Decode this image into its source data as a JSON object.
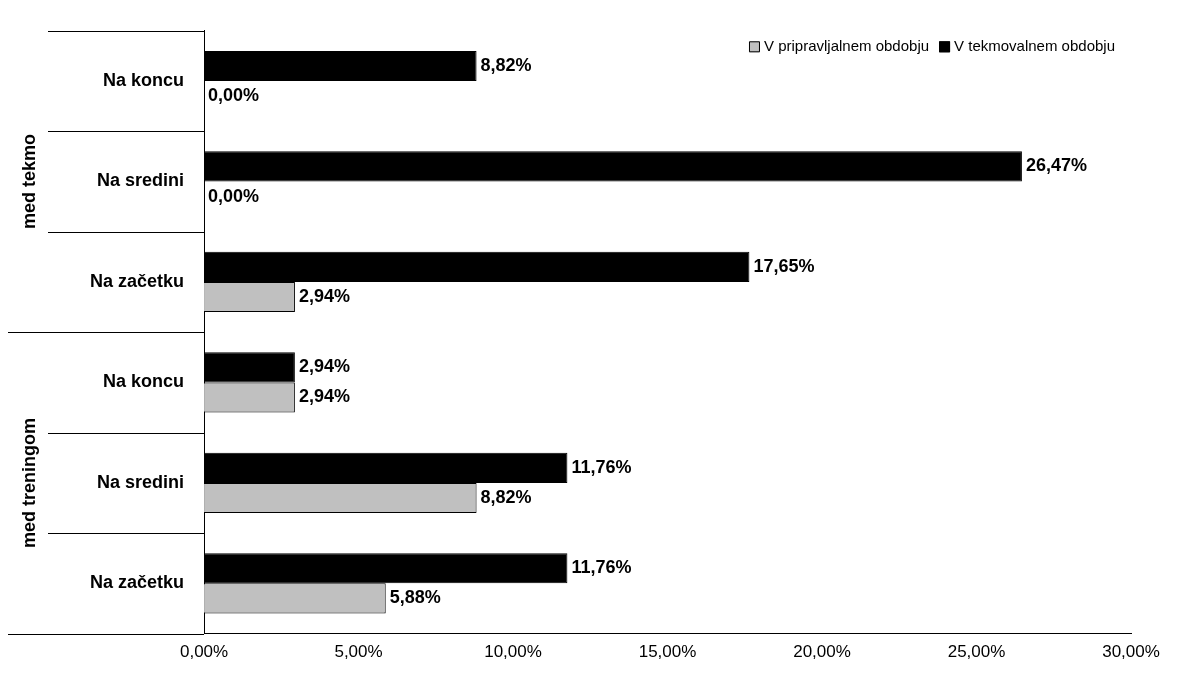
{
  "chart_data": {
    "type": "bar",
    "orientation": "horizontal",
    "categories": [
      "Na koncu",
      "Na sredini",
      "Na začetku",
      "Na koncu",
      "Na sredini",
      "Na začetku"
    ],
    "series": [
      {
        "name": "V pripravljalnem obdobju",
        "color": "#c0c0c0",
        "values": [
          0,
          0,
          2.94,
          2.94,
          8.82,
          5.88
        ],
        "value_labels": [
          "0,00%",
          "0,00%",
          "2,94%",
          "2,94%",
          "8,82%",
          "5,88%"
        ]
      },
      {
        "name": "V tekmovalnem obdobju",
        "color": "#000000",
        "values": [
          8.82,
          26.47,
          17.65,
          2.94,
          11.76,
          11.76
        ],
        "value_labels": [
          "8,82%",
          "26,47%",
          "17,65%",
          "2,94%",
          "11,76%",
          "11,76%"
        ]
      }
    ],
    "xlim": [
      0,
      30
    ],
    "xticks": [
      {
        "value": 0,
        "label": "0,00%"
      },
      {
        "value": 5,
        "label": "5,00%"
      },
      {
        "value": 10,
        "label": "10,00%"
      },
      {
        "value": 15,
        "label": "15,00%"
      },
      {
        "value": 20,
        "label": "20,00%"
      },
      {
        "value": 25,
        "label": "25,00%"
      },
      {
        "value": 30,
        "label": "30,00%"
      }
    ],
    "annotations": [
      "med tekmo",
      "med treningom"
    ],
    "grid": false,
    "legend": "top right"
  }
}
